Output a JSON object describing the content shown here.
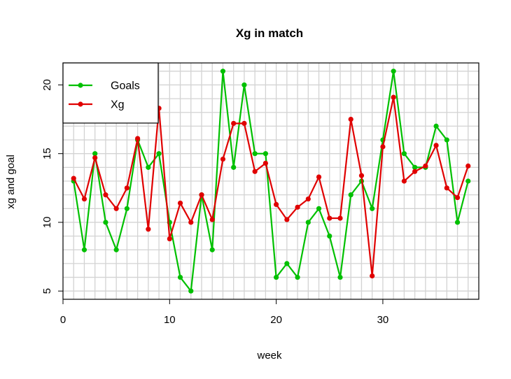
{
  "chart_data": {
    "type": "line",
    "title": "Xg in match",
    "xlabel": "week",
    "ylabel": "xg and goal",
    "xlim": [
      0,
      39
    ],
    "ylim": [
      4.4,
      21.6
    ],
    "xticks": [
      0,
      10,
      20,
      30
    ],
    "yticks": [
      5,
      10,
      15,
      20
    ],
    "grid": true,
    "legend_position": "top-left",
    "x": [
      1,
      2,
      3,
      4,
      5,
      6,
      7,
      8,
      9,
      10,
      11,
      12,
      13,
      14,
      15,
      16,
      17,
      18,
      19,
      20,
      21,
      22,
      23,
      24,
      25,
      26,
      27,
      28,
      29,
      30,
      31,
      32,
      33,
      34,
      35,
      36,
      37,
      38
    ],
    "series": [
      {
        "name": "Goals",
        "color": "#00c000",
        "values": [
          13,
          8,
          15,
          10,
          8,
          11,
          16,
          14,
          15,
          10,
          6,
          5,
          12,
          8,
          21,
          14,
          20,
          15,
          15,
          6,
          7,
          6,
          10,
          11,
          9,
          6,
          12,
          13,
          11,
          16,
          21,
          15,
          14,
          14,
          17,
          16,
          10,
          13
        ]
      },
      {
        "name": "Xg",
        "color": "#e00000",
        "values": [
          13.2,
          11.7,
          14.7,
          12.0,
          11.0,
          12.5,
          16.1,
          9.5,
          18.3,
          8.8,
          11.4,
          10.0,
          12.0,
          10.2,
          14.6,
          17.2,
          17.2,
          13.7,
          14.3,
          11.3,
          10.2,
          11.1,
          11.7,
          13.3,
          10.3,
          10.3,
          17.5,
          13.4,
          6.1,
          15.5,
          19.1,
          13.0,
          13.7,
          14.1,
          15.6,
          12.5,
          11.8,
          14.1
        ]
      }
    ]
  }
}
